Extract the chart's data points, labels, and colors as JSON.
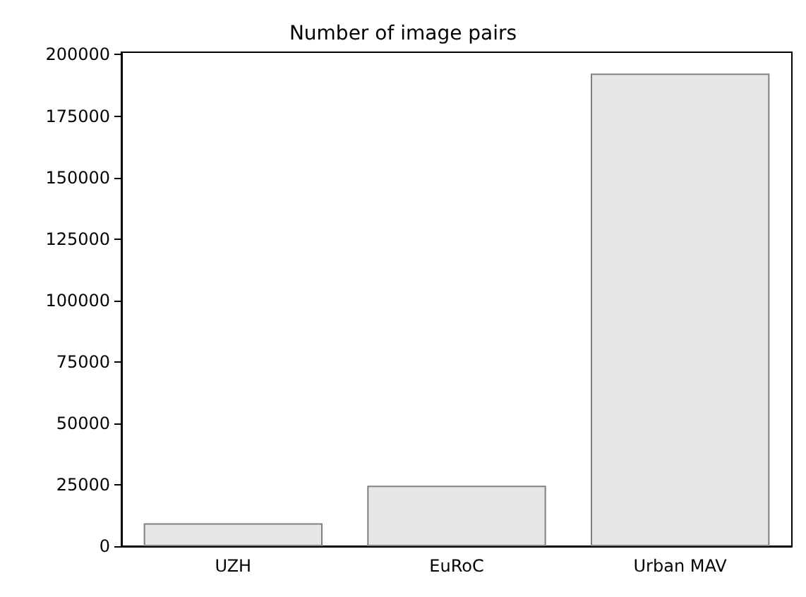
{
  "chart_data": {
    "type": "bar",
    "title": "Number of image pairs",
    "categories": [
      "UZH",
      "EuRoC",
      "Urban MAV"
    ],
    "values": [
      9300,
      24600,
      192300
    ],
    "color": "#e6e6e6",
    "ylim": [
      0,
      201000
    ],
    "yticks": [
      0,
      25000,
      50000,
      75000,
      100000,
      125000,
      150000,
      175000,
      200000
    ],
    "grid": false
  }
}
